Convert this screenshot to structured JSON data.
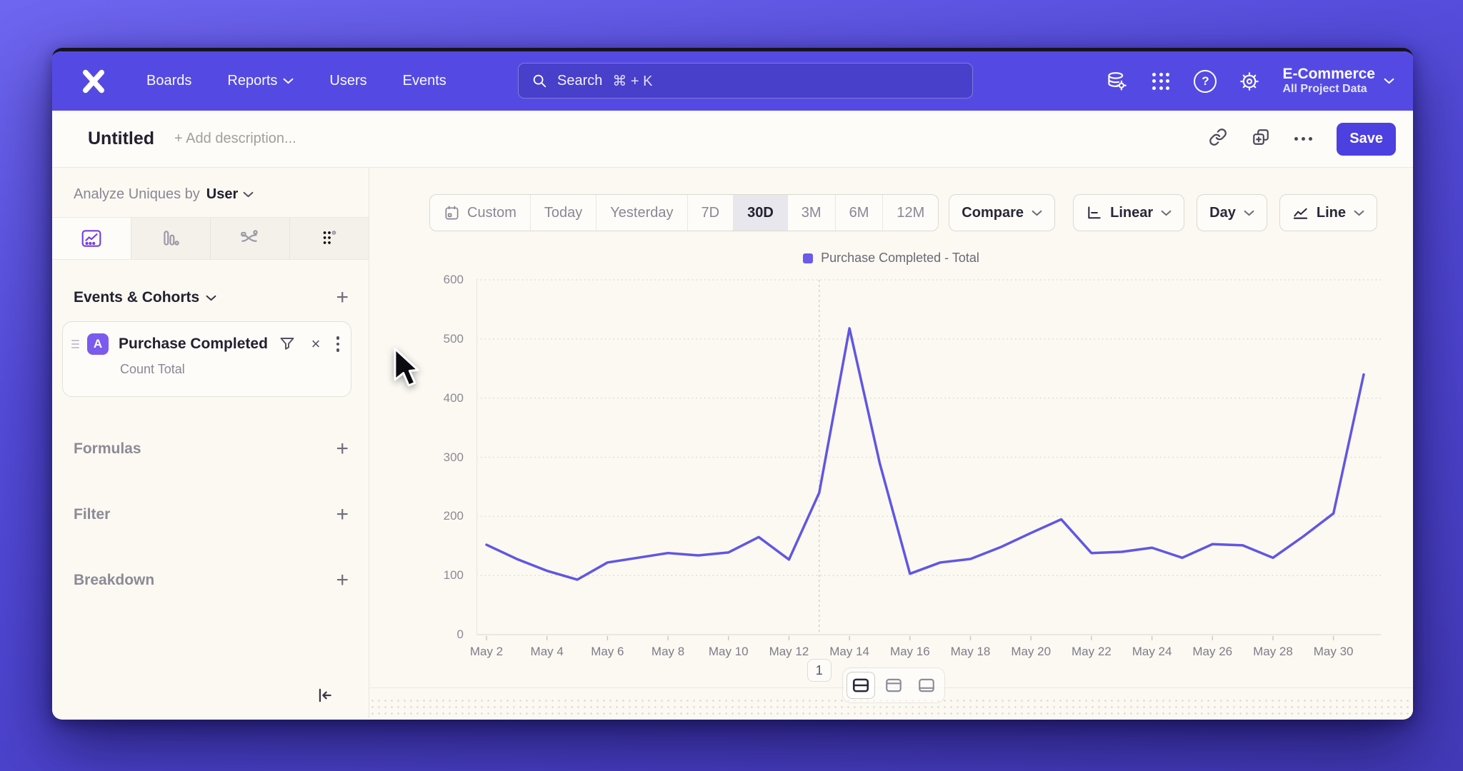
{
  "colors": {
    "nav_bg": "#544ae3",
    "nav_search_bg": "#483fcb",
    "accent": "#4c40e0",
    "content_bg": "#fbf9f2",
    "panel_bg": "#fdfcf8",
    "border_strong": "#dbd9cf",
    "text_dark": "#23202f",
    "text_gray": "#8a8795",
    "text_mid": "#4a4756",
    "line": "#6156e2",
    "legend_swatch": "#6a5be8",
    "badge": "#7a5bee",
    "selected_pill": "#e8e7ed",
    "tab_icon": "#7340e0",
    "tabs_bg": "#f3f1ea",
    "outer_top": "#6f66f0",
    "outer_bottom": "#433ab8",
    "window_top_edge": "#16131f"
  },
  "nav": {
    "items": [
      "Boards",
      "Reports",
      "Users",
      "Events"
    ],
    "search": {
      "placeholder": "Search",
      "shortcut": "⌘ + K"
    },
    "project": {
      "name": "E-Commerce",
      "scope": "All Project Data"
    }
  },
  "titlebar": {
    "title": "Untitled",
    "description_placeholder": "+ Add description...",
    "save_label": "Save"
  },
  "sidebar": {
    "analyze": {
      "label": "Analyze Uniques by",
      "value": "User"
    },
    "events_header": "Events & Cohorts",
    "event_card": {
      "badge": "A",
      "title": "Purchase Completed",
      "subtitle": "Count Total"
    },
    "formulas_label": "Formulas",
    "filter_label": "Filter",
    "breakdown_label": "Breakdown"
  },
  "controls": {
    "date_ranges": [
      "Custom",
      "Today",
      "Yesterday",
      "7D",
      "30D",
      "3M",
      "6M",
      "12M"
    ],
    "selected_range": "30D",
    "compare_label": "Compare",
    "scale_label": "Linear",
    "interval_label": "Day",
    "chart_type_label": "Line"
  },
  "legend": {
    "label": "Purchase Completed - Total"
  },
  "pagination": {
    "page": "1"
  },
  "icons": {
    "close": "×",
    "plus": "+",
    "question": "?"
  },
  "chart_data": {
    "type": "line",
    "title": "",
    "xlabel": "",
    "ylabel": "",
    "categories": [
      "May 2",
      "May 3",
      "May 4",
      "May 5",
      "May 6",
      "May 7",
      "May 8",
      "May 9",
      "May 10",
      "May 11",
      "May 12",
      "May 13",
      "May 14",
      "May 15",
      "May 16",
      "May 17",
      "May 18",
      "May 19",
      "May 20",
      "May 21",
      "May 22",
      "May 23",
      "May 24",
      "May 25",
      "May 26",
      "May 27",
      "May 28",
      "May 29",
      "May 30",
      "May 31"
    ],
    "series": [
      {
        "name": "Purchase Completed - Total",
        "color": "#6156e2",
        "values": [
          152,
          128,
          108,
          93,
          122,
          130,
          138,
          134,
          139,
          165,
          127,
          240,
          518,
          290,
          103,
          122,
          128,
          148,
          172,
          195,
          138,
          140,
          147,
          130,
          153,
          151,
          130,
          166,
          205,
          440
        ]
      }
    ],
    "ylim": [
      0,
      600
    ],
    "yticks": [
      0,
      100,
      200,
      300,
      400,
      500,
      600
    ],
    "xtick_every": 2,
    "annotation_line_at": "May 13",
    "grid": true,
    "legend_position": "top-center"
  }
}
